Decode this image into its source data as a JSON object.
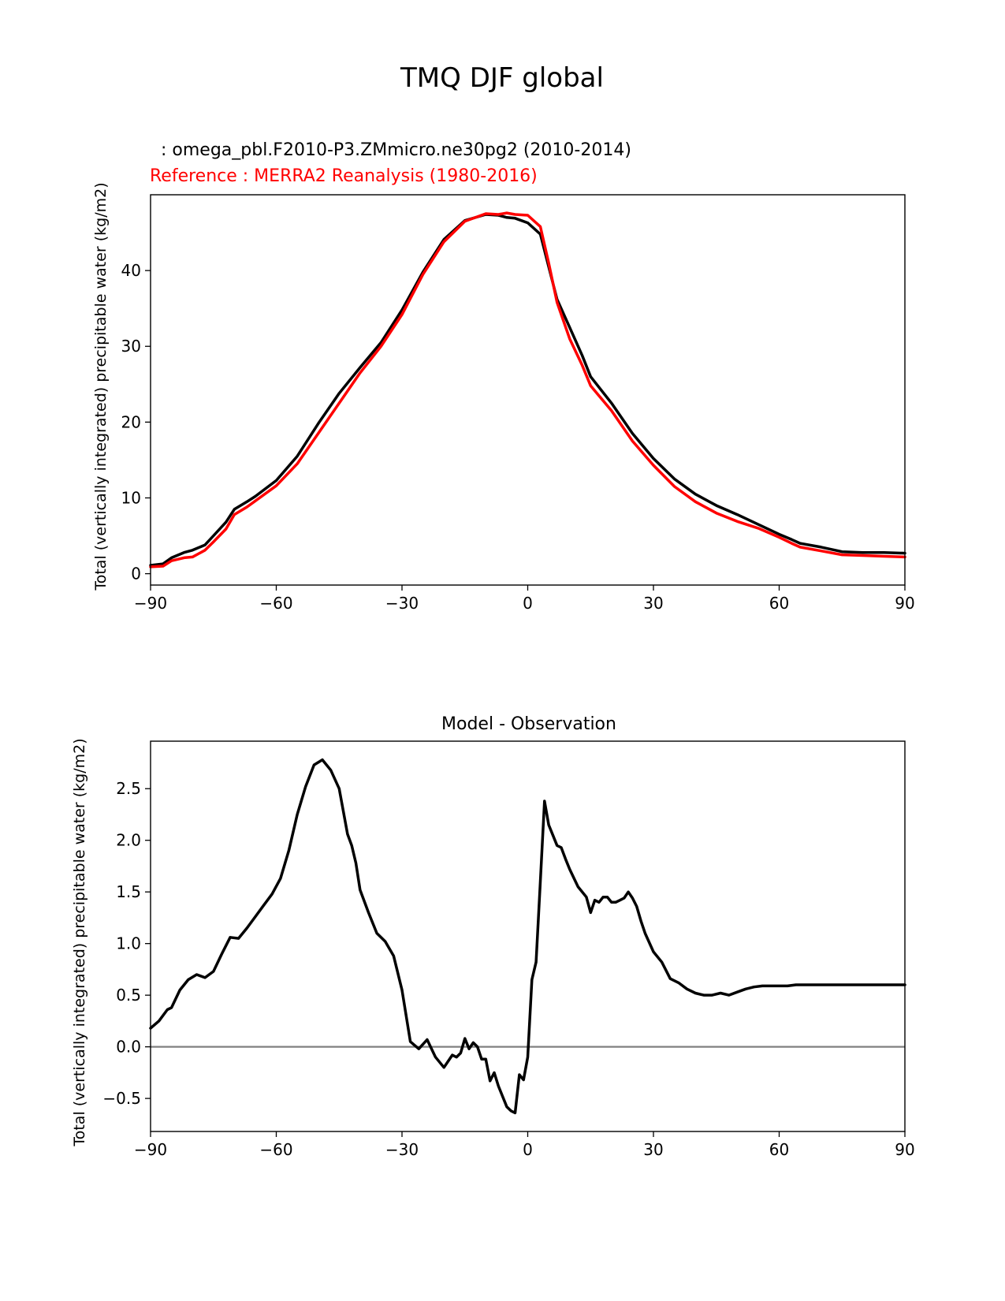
{
  "figure": {
    "title": "TMQ DJF global"
  },
  "chart_data": [
    {
      "type": "line",
      "name": "climatology",
      "title": "",
      "test_label": "  : omega_pbl.F2010-P3.ZMmicro.ne30pg2 (2010-2014)",
      "reference_label": "Reference : MERRA2 Reanalysis (1980-2016)",
      "xlabel": "",
      "ylabel": "Total (vertically integrated) precipitable water (kg/m2)",
      "xlim": [
        -90,
        90
      ],
      "ylim": [
        -1.5,
        50
      ],
      "xticks": [
        -90,
        -60,
        -30,
        0,
        30,
        60,
        90
      ],
      "xtick_labels": [
        "−90",
        "−60",
        "−30",
        "0",
        "30",
        "60",
        "90"
      ],
      "yticks": [
        0,
        10,
        20,
        30,
        40
      ],
      "ytick_labels": [
        "0",
        "10",
        "20",
        "30",
        "40"
      ],
      "series": [
        {
          "name": "omega_pbl.F2010-P3.ZMmicro.ne30pg2 (2010-2014)",
          "color": "#000000",
          "x": [
            -90,
            -87,
            -85,
            -82,
            -80,
            -77,
            -75,
            -72,
            -70,
            -67,
            -65,
            -60,
            -55,
            -50,
            -45,
            -40,
            -35,
            -30,
            -25,
            -20,
            -15,
            -10,
            -7,
            -5,
            -3,
            0,
            3,
            5,
            7,
            10,
            13,
            15,
            20,
            25,
            30,
            35,
            40,
            45,
            50,
            55,
            60,
            63,
            65,
            70,
            75,
            80,
            85,
            90
          ],
          "y": [
            1.1,
            1.3,
            2.1,
            2.8,
            3.1,
            3.8,
            5.0,
            6.8,
            8.5,
            9.5,
            10.2,
            12.3,
            15.5,
            19.8,
            23.8,
            27.2,
            30.5,
            34.8,
            39.8,
            44.1,
            46.6,
            47.4,
            47.3,
            47.0,
            46.9,
            46.3,
            44.8,
            40.5,
            36.2,
            32.5,
            28.8,
            26.0,
            22.5,
            18.5,
            15.2,
            12.5,
            10.5,
            9.0,
            7.8,
            6.5,
            5.2,
            4.5,
            4.0,
            3.5,
            2.9,
            2.8,
            2.8,
            2.7
          ]
        },
        {
          "name": "MERRA2 Reanalysis (1980-2016)",
          "color": "#ff0000",
          "x": [
            -90,
            -87,
            -85,
            -82,
            -80,
            -77,
            -75,
            -72,
            -70,
            -67,
            -65,
            -60,
            -55,
            -50,
            -45,
            -40,
            -35,
            -30,
            -25,
            -20,
            -15,
            -10,
            -7,
            -5,
            -3,
            0,
            3,
            5,
            7,
            10,
            13,
            15,
            20,
            25,
            30,
            35,
            40,
            45,
            50,
            55,
            60,
            63,
            65,
            70,
            75,
            80,
            85,
            90
          ],
          "y": [
            0.9,
            1.0,
            1.7,
            2.1,
            2.2,
            3.1,
            4.2,
            5.9,
            7.8,
            8.8,
            9.6,
            11.6,
            14.5,
            18.5,
            22.5,
            26.5,
            30.0,
            34.2,
            39.5,
            43.8,
            46.5,
            47.5,
            47.4,
            47.6,
            47.4,
            47.3,
            45.8,
            41.0,
            35.8,
            31.0,
            27.5,
            24.8,
            21.5,
            17.5,
            14.3,
            11.5,
            9.5,
            8.0,
            6.9,
            6.0,
            4.8,
            4.0,
            3.5,
            3.0,
            2.5,
            2.4,
            2.3,
            2.2
          ]
        }
      ]
    },
    {
      "type": "line",
      "name": "difference",
      "title": "Model - Observation",
      "xlabel": "",
      "ylabel": "Total (vertically integrated) precipitable water (kg/m2)",
      "xlim": [
        -90,
        90
      ],
      "ylim": [
        -0.82,
        2.96
      ],
      "xticks": [
        -90,
        -60,
        -30,
        0,
        30,
        60,
        90
      ],
      "xtick_labels": [
        "−90",
        "−60",
        "−30",
        "0",
        "30",
        "60",
        "90"
      ],
      "yticks": [
        -0.5,
        0.0,
        0.5,
        1.0,
        1.5,
        2.0,
        2.5
      ],
      "ytick_labels": [
        "−0.5",
        "0.0",
        "0.5",
        "1.0",
        "1.5",
        "2.0",
        "2.5"
      ],
      "zero_line": 0.0,
      "series": [
        {
          "name": "Model - Observation",
          "color": "#000000",
          "x": [
            -90,
            -88,
            -86,
            -85,
            -83,
            -81,
            -79,
            -77,
            -75,
            -73,
            -71,
            -69,
            -67,
            -65,
            -63,
            -61,
            -59,
            -57,
            -55,
            -53,
            -51,
            -49,
            -47,
            -45,
            -43,
            -42,
            -41,
            -40,
            -38,
            -36,
            -34,
            -32,
            -30,
            -28,
            -26,
            -24,
            -22,
            -20,
            -18,
            -17,
            -16,
            -15,
            -14,
            -13,
            -12,
            -11,
            -10,
            -9,
            -8,
            -7,
            -6,
            -5,
            -4,
            -3,
            -2,
            -1,
            0,
            1,
            2,
            3,
            4,
            5,
            6,
            7,
            8,
            9,
            10,
            12,
            14,
            15,
            16,
            17,
            18,
            19,
            20,
            21,
            22,
            23,
            24,
            25,
            26,
            27,
            28,
            30,
            32,
            34,
            36,
            38,
            40,
            42,
            44,
            46,
            48,
            50,
            52,
            54,
            56,
            58,
            60,
            62,
            64,
            66,
            68,
            70,
            72,
            74,
            76,
            78,
            80,
            82,
            84,
            86,
            88,
            90
          ],
          "y": [
            0.18,
            0.25,
            0.36,
            0.38,
            0.55,
            0.65,
            0.7,
            0.67,
            0.73,
            0.9,
            1.06,
            1.05,
            1.15,
            1.26,
            1.37,
            1.48,
            1.63,
            1.9,
            2.25,
            2.52,
            2.73,
            2.78,
            2.68,
            2.5,
            2.06,
            1.95,
            1.78,
            1.52,
            1.3,
            1.1,
            1.02,
            0.88,
            0.55,
            0.05,
            -0.02,
            0.07,
            -0.1,
            -0.2,
            -0.08,
            -0.1,
            -0.06,
            0.08,
            -0.02,
            0.04,
            0.0,
            -0.12,
            -0.12,
            -0.33,
            -0.25,
            -0.38,
            -0.48,
            -0.58,
            -0.62,
            -0.64,
            -0.27,
            -0.32,
            -0.1,
            0.65,
            0.82,
            1.6,
            2.38,
            2.15,
            2.05,
            1.95,
            1.93,
            1.82,
            1.72,
            1.55,
            1.45,
            1.3,
            1.42,
            1.4,
            1.45,
            1.45,
            1.4,
            1.4,
            1.42,
            1.44,
            1.5,
            1.44,
            1.36,
            1.22,
            1.1,
            0.92,
            0.82,
            0.66,
            0.62,
            0.56,
            0.52,
            0.5,
            0.5,
            0.52,
            0.5,
            0.53,
            0.56,
            0.58,
            0.59,
            0.59,
            0.59,
            0.59,
            0.6,
            0.6,
            0.6,
            0.6,
            0.6,
            0.6,
            0.6,
            0.6,
            0.6,
            0.6,
            0.6,
            0.6,
            0.6,
            0.6
          ]
        }
      ]
    }
  ]
}
